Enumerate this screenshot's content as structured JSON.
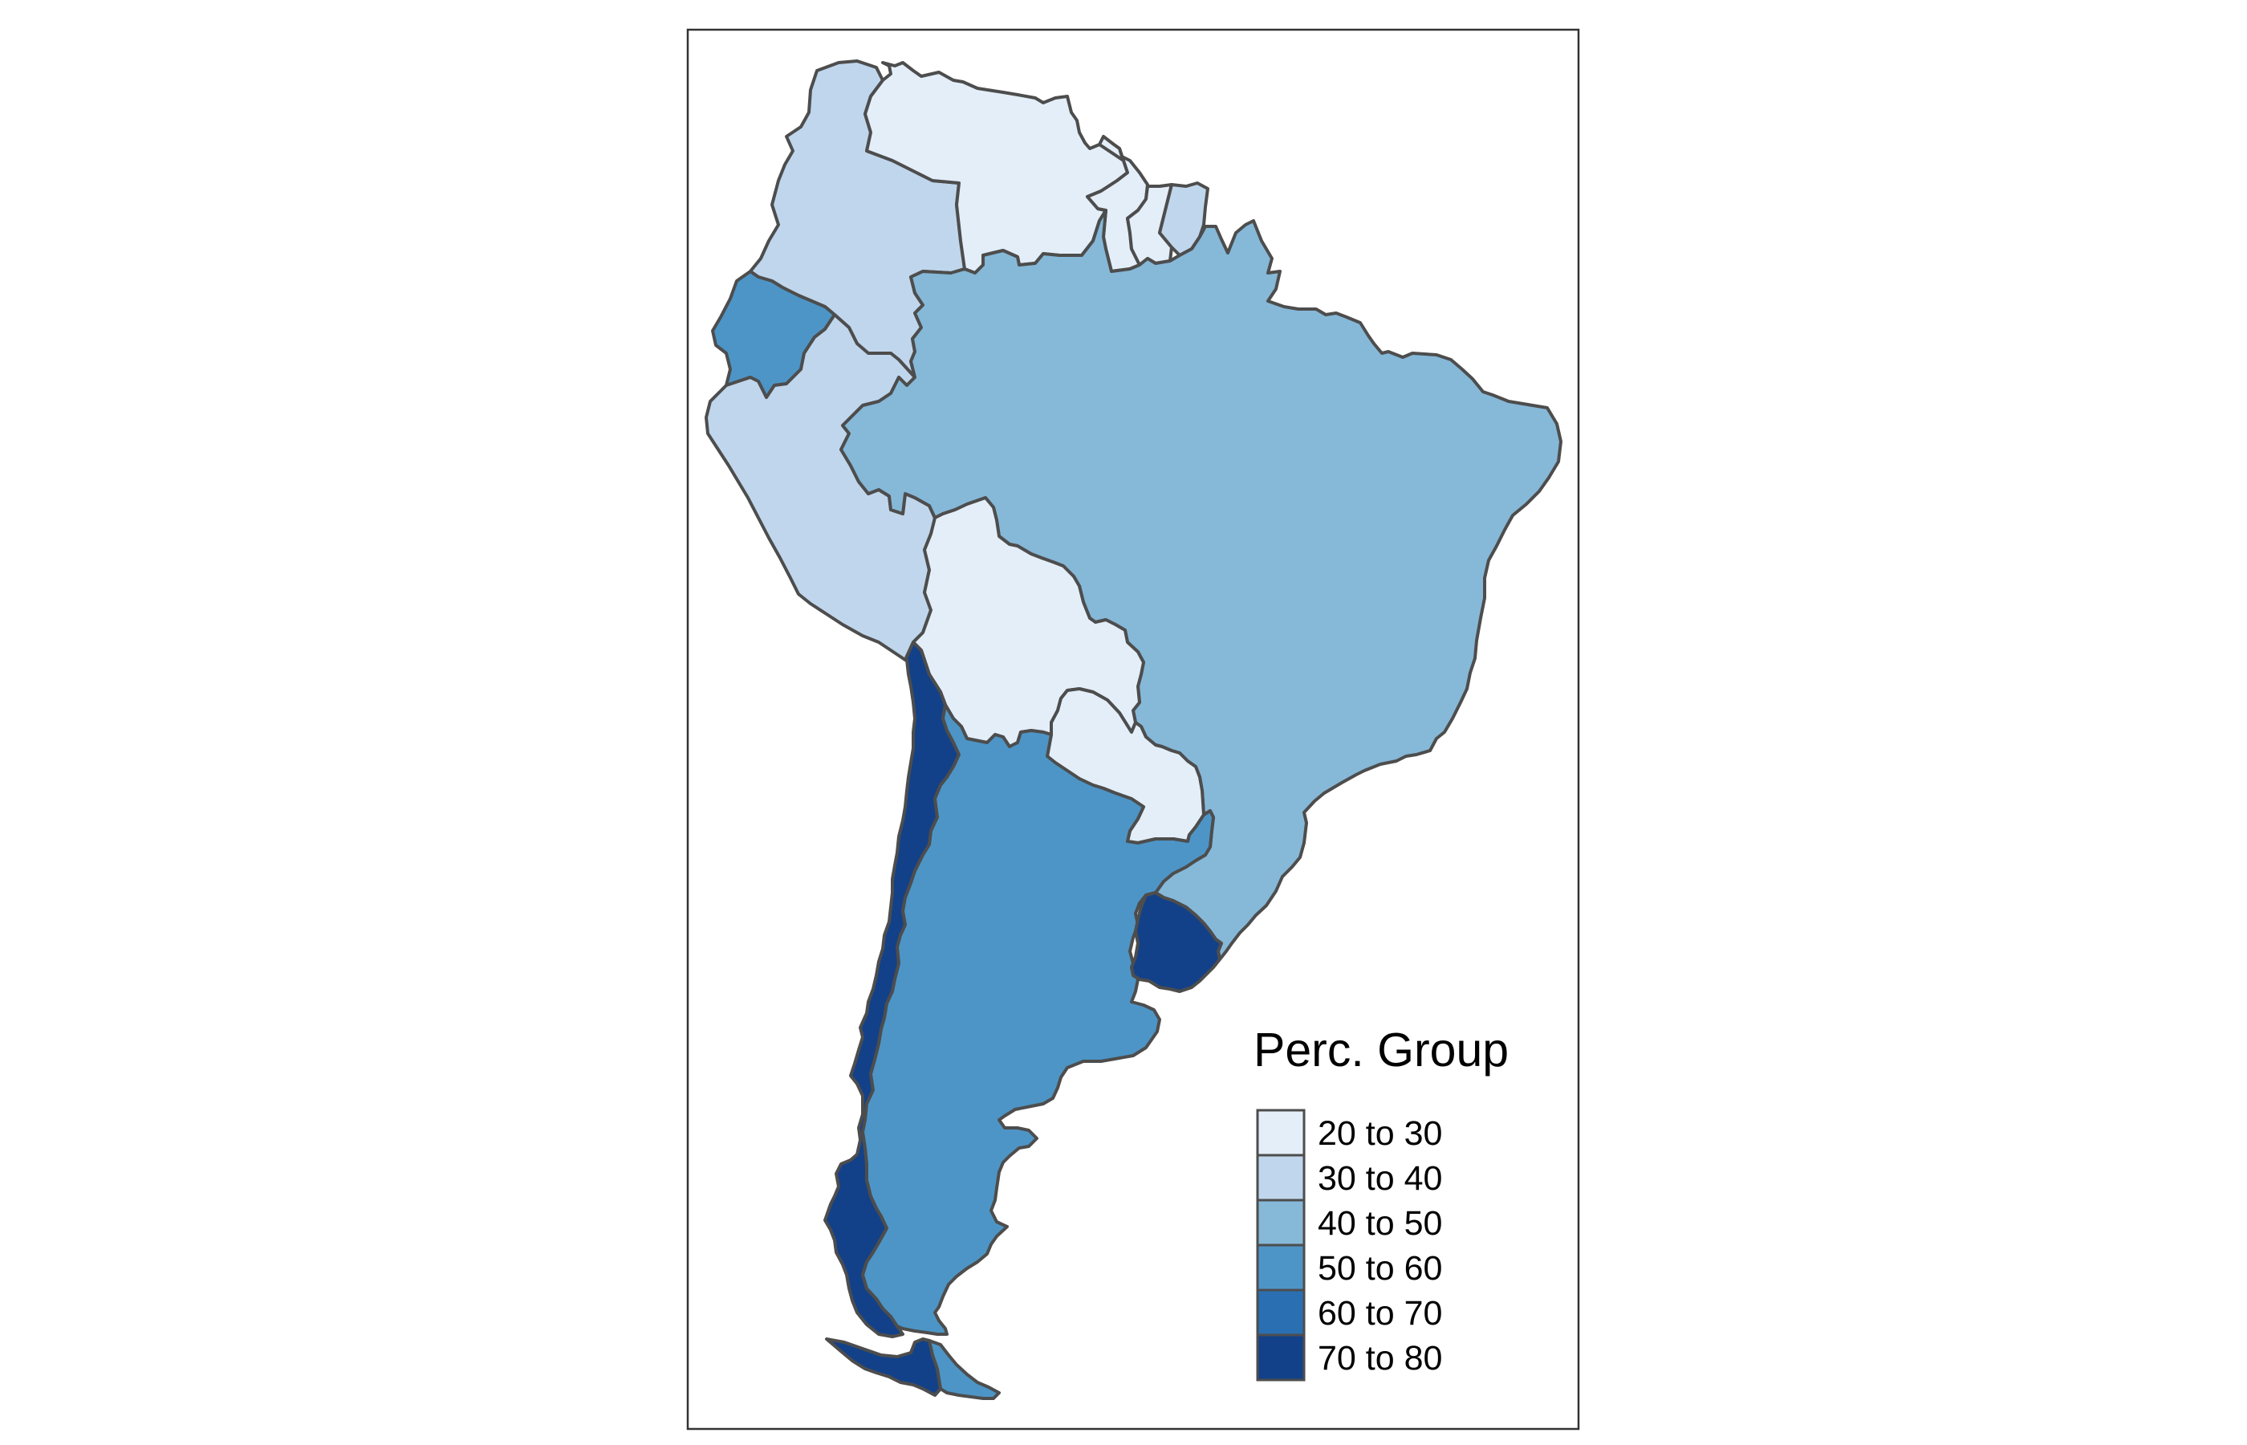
{
  "legend": {
    "title": "Perc. Group",
    "classes": [
      {
        "label": "20 to 30",
        "color": "#e3eef9"
      },
      {
        "label": "30 to 40",
        "color": "#c0d6ec"
      },
      {
        "label": "40 to 50",
        "color": "#86b8d8"
      },
      {
        "label": "50 to 60",
        "color": "#4d95c6"
      },
      {
        "label": "60 to 70",
        "color": "#2a6fb1"
      },
      {
        "label": "70 to 80",
        "color": "#124189"
      }
    ]
  },
  "countries": [
    {
      "id": "venezuela",
      "class": 0
    },
    {
      "id": "guyana",
      "class": 0
    },
    {
      "id": "suriname",
      "class": 0
    },
    {
      "id": "bolivia",
      "class": 0
    },
    {
      "id": "paraguay",
      "class": 0
    },
    {
      "id": "colombia",
      "class": 1
    },
    {
      "id": "peru",
      "class": 1
    },
    {
      "id": "french-guiana",
      "class": 1
    },
    {
      "id": "brazil",
      "class": 2
    },
    {
      "id": "ecuador",
      "class": 3
    },
    {
      "id": "argentina",
      "class": 3
    },
    {
      "id": "chile",
      "class": 5
    },
    {
      "id": "uruguay",
      "class": 5
    }
  ]
}
